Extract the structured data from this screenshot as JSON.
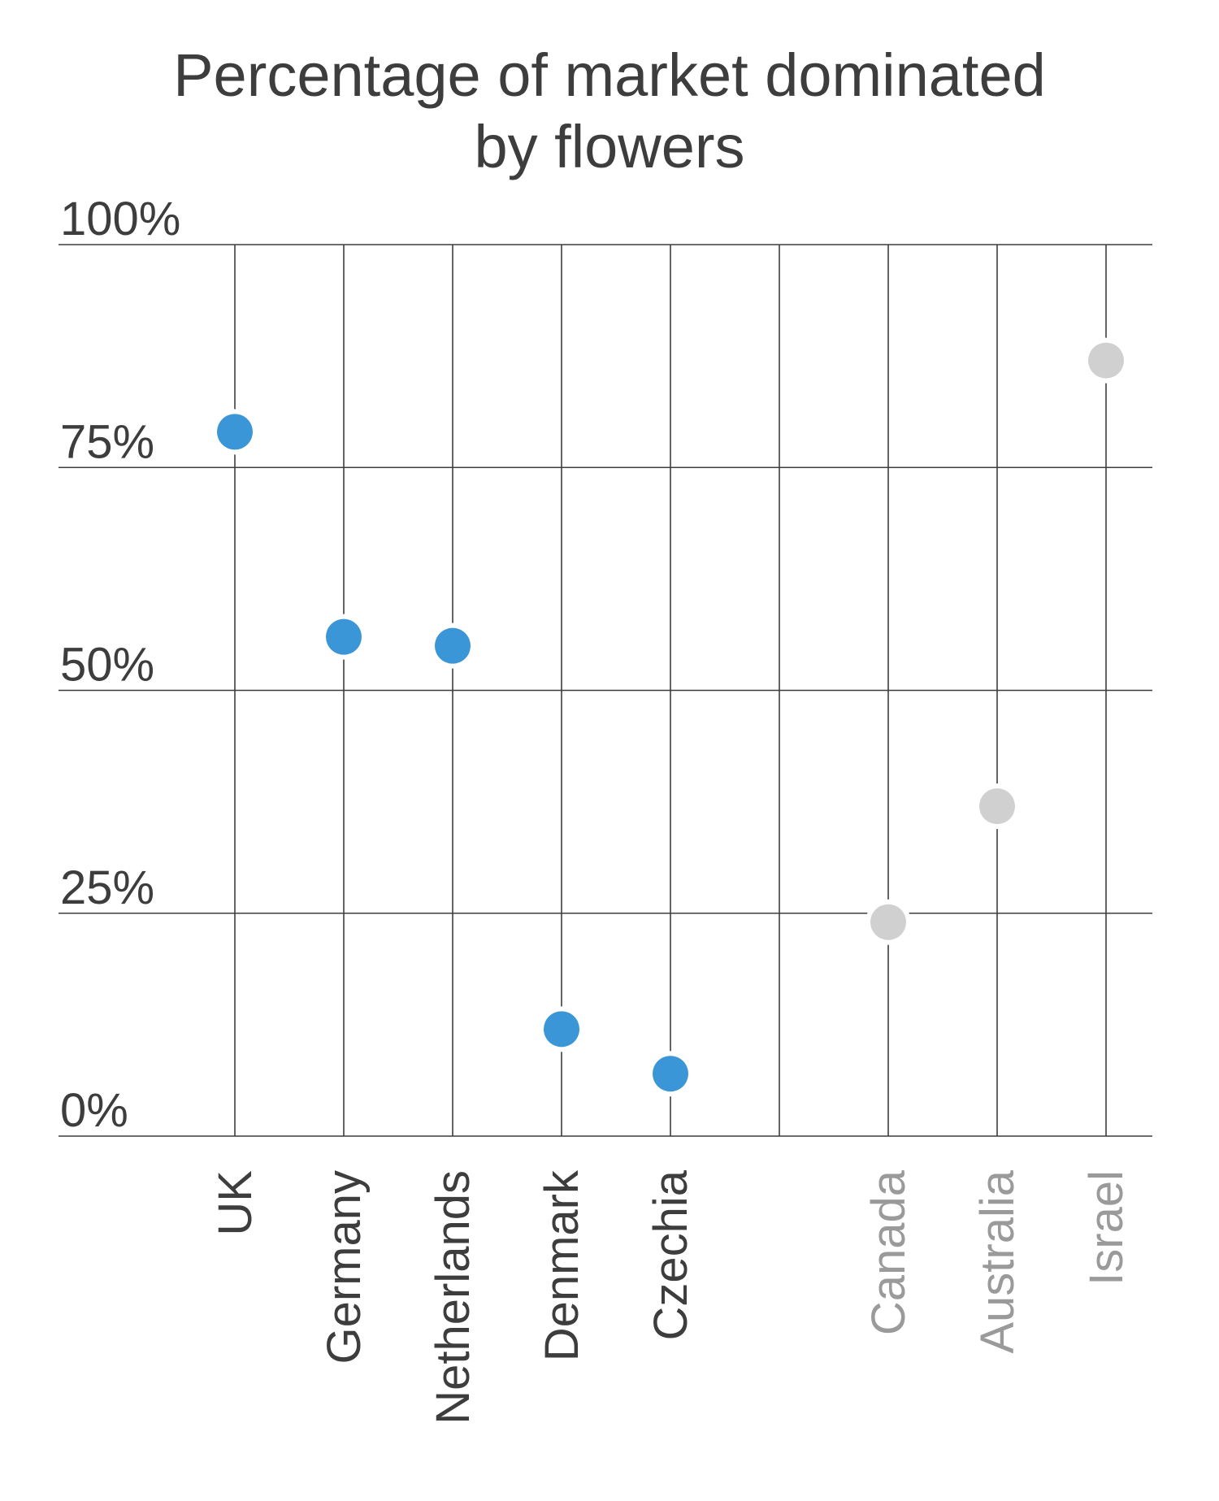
{
  "chart_data": {
    "type": "scatter",
    "title_lines": [
      "Percentage of market dominated",
      "by flowers"
    ],
    "xlabel": "",
    "ylabel": "",
    "ylim": [
      0,
      100
    ],
    "y_ticks": [
      {
        "value": 100,
        "label": "100%"
      },
      {
        "value": 75,
        "label": "75%"
      },
      {
        "value": 50,
        "label": "50%"
      },
      {
        "value": 25,
        "label": "25%"
      },
      {
        "value": 0,
        "label": "0%"
      }
    ],
    "grid": true,
    "categories": [
      "UK",
      "Germany",
      "Netherlands",
      "Denmark",
      "Czechia",
      "",
      "Canada",
      "Australia",
      "Israel"
    ],
    "values": [
      79,
      56,
      55,
      12,
      7,
      null,
      24,
      37,
      87
    ],
    "groups": [
      "primary",
      "primary",
      "primary",
      "primary",
      "primary",
      "gap",
      "secondary",
      "secondary",
      "secondary"
    ],
    "colors": {
      "primary": "#3a96d6",
      "secondary": "#d0d0d0",
      "primary_label": "#3d3d3d",
      "secondary_label": "#9a9a9a",
      "grid": "#3d3d3d",
      "text": "#3d3d3d"
    }
  }
}
